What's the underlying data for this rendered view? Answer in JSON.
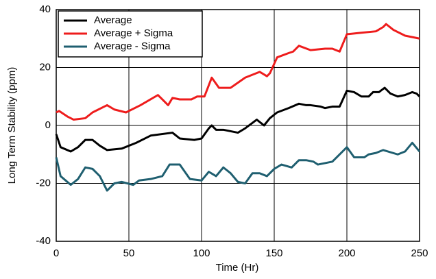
{
  "chart_data": {
    "type": "line",
    "xlabel": "Time (Hr)",
    "ylabel": "Long Term Stability (ppm)",
    "xlim": [
      0,
      250
    ],
    "xticks": [
      0,
      50,
      100,
      150,
      200,
      250
    ],
    "ylim": [
      -40,
      40
    ],
    "yticks": [
      -40,
      -20,
      0,
      20,
      40
    ],
    "grid": true,
    "legend": "upper left",
    "series": [
      {
        "name": "Average",
        "color": "#000000",
        "x": [
          0,
          3,
          10,
          15,
          20,
          25,
          30,
          35,
          45,
          55,
          65,
          80,
          85,
          95,
          100,
          105,
          107,
          110,
          115,
          125,
          130,
          138,
          143,
          147,
          152,
          160,
          167,
          172,
          175,
          182,
          185,
          190,
          195,
          200,
          205,
          210,
          215,
          218,
          222,
          226,
          230,
          235,
          240,
          245,
          248,
          250
        ],
        "values": [
          -3,
          -7.5,
          -9,
          -7.5,
          -5,
          -5,
          -7,
          -8.5,
          -8,
          -6,
          -3.5,
          -2.5,
          -4.5,
          -5,
          -4.5,
          -1,
          0,
          -1.5,
          -1.5,
          -2.5,
          -1,
          2,
          0,
          2.5,
          4.5,
          6,
          7.5,
          7,
          7,
          6.5,
          6,
          6.5,
          6.5,
          12,
          11.5,
          10,
          10,
          11.5,
          11.5,
          13,
          11,
          10,
          10.5,
          11.5,
          11,
          10
        ]
      },
      {
        "name": "Average + Sigma",
        "color": "#ee1c1c",
        "x": [
          0,
          2,
          8,
          12,
          20,
          25,
          35,
          40,
          48,
          58,
          70,
          73,
          77,
          80,
          85,
          93,
          97,
          102,
          107,
          112,
          120,
          130,
          140,
          145,
          147,
          152,
          160,
          163,
          167,
          175,
          185,
          190,
          195,
          200,
          210,
          220,
          225,
          227,
          232,
          240,
          245,
          250
        ],
        "values": [
          4.5,
          5,
          3,
          2,
          2.5,
          4.5,
          7,
          5.5,
          4.5,
          7,
          10.5,
          9,
          7,
          9.5,
          9,
          9,
          10,
          10,
          16.5,
          13,
          13,
          16.5,
          18.5,
          17,
          18,
          23.5,
          25,
          25.5,
          27.5,
          26,
          26.5,
          26.5,
          25.5,
          31.5,
          32,
          32.5,
          34,
          35,
          33,
          31,
          30.5,
          30
        ]
      },
      {
        "name": "Average - Sigma",
        "color": "#1f5f70",
        "x": [
          0,
          3,
          10,
          15,
          20,
          25,
          30,
          35,
          40,
          45,
          53,
          57,
          65,
          73,
          78,
          85,
          92,
          100,
          105,
          110,
          115,
          120,
          125,
          130,
          135,
          140,
          145,
          150,
          155,
          162,
          167,
          172,
          177,
          180,
          185,
          190,
          200,
          205,
          212,
          215,
          220,
          225,
          235,
          240,
          245,
          250
        ],
        "values": [
          -11,
          -17.5,
          -20.5,
          -18.5,
          -14.5,
          -15,
          -17.5,
          -22.5,
          -20,
          -19.5,
          -20.5,
          -19,
          -18.5,
          -17.5,
          -13.5,
          -13.5,
          -18.5,
          -19,
          -16,
          -17.5,
          -14.5,
          -16.5,
          -19.5,
          -20,
          -16.5,
          -16.5,
          -17.5,
          -15,
          -13.5,
          -14.5,
          -12,
          -12,
          -12.5,
          -13.5,
          -13,
          -12.5,
          -7.5,
          -11,
          -11,
          -10,
          -9.5,
          -8.5,
          -10,
          -9,
          -6,
          -9
        ]
      }
    ]
  }
}
